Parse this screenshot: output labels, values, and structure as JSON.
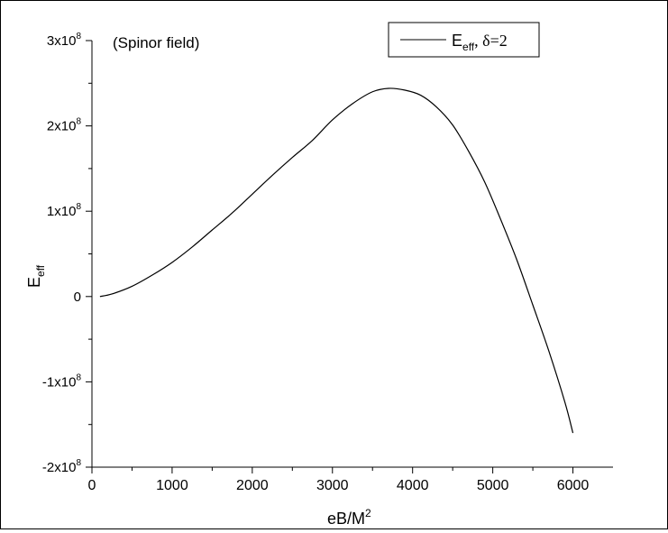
{
  "chart_data": {
    "type": "line",
    "annotation": "(Spinor field)",
    "legend": {
      "position": "top-right",
      "entries": [
        {
          "label_main": "E",
          "label_sub": "eff",
          "label_rest": ", δ=2"
        }
      ]
    },
    "xlabel": {
      "main": "eB/M",
      "sup": "2"
    },
    "ylabel": {
      "main": "E",
      "sub": "eff"
    },
    "xlim": [
      0,
      6500
    ],
    "ylim": [
      -200000000,
      300000000
    ],
    "x_ticks": [
      0,
      1000,
      2000,
      3000,
      4000,
      5000,
      6000
    ],
    "x_tick_labels": [
      "0",
      "1000",
      "2000",
      "3000",
      "4000",
      "5000",
      "6000"
    ],
    "y_ticks": [
      -200000000,
      -100000000,
      0,
      100000000,
      200000000,
      300000000
    ],
    "y_tick_labels": [
      {
        "main": "-2x10",
        "sup": "8"
      },
      {
        "main": "-1x10",
        "sup": "8"
      },
      {
        "main": "0",
        "sup": ""
      },
      {
        "main": "1x10",
        "sup": "8"
      },
      {
        "main": "2x10",
        "sup": "8"
      },
      {
        "main": "3x10",
        "sup": "8"
      }
    ],
    "grid": false,
    "series": [
      {
        "color": "#000000",
        "x": [
          100,
          250,
          500,
          750,
          1000,
          1250,
          1500,
          1750,
          2000,
          2250,
          2500,
          2750,
          3000,
          3250,
          3500,
          3700,
          3900,
          4100,
          4300,
          4500,
          4700,
          4900,
          5100,
          5300,
          5500,
          5700,
          5900,
          6000
        ],
        "y": [
          0,
          3000000,
          12000000,
          25000000,
          40000000,
          58000000,
          78000000,
          98000000,
          120000000,
          142000000,
          163000000,
          183000000,
          207000000,
          226000000,
          240000000,
          244000000,
          242000000,
          236000000,
          222000000,
          201000000,
          170000000,
          134000000,
          90000000,
          43000000,
          -10000000,
          -64000000,
          -124000000,
          -160000000
        ]
      }
    ]
  }
}
